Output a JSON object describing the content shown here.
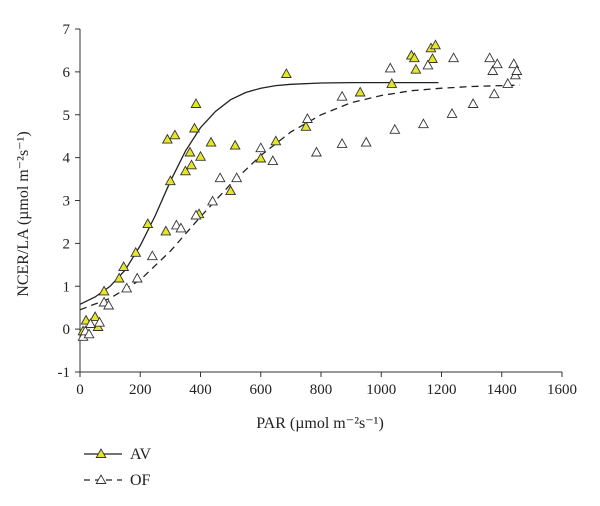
{
  "chart_data": {
    "type": "scatter",
    "xlabel": "PAR (µmol m⁻²s⁻¹)",
    "ylabel": "NCER/LA (µmol m⁻²s⁻¹)",
    "xlim": [
      0,
      1600
    ],
    "ylim": [
      -1,
      7
    ],
    "xticks": [
      0,
      200,
      400,
      600,
      800,
      1000,
      1200,
      1400,
      1600
    ],
    "yticks": [
      -1,
      0,
      1,
      2,
      3,
      4,
      5,
      6,
      7
    ],
    "grid": false,
    "legend_placement": "bottom-left",
    "series": [
      {
        "name": "AV",
        "marker": "triangle",
        "marker_fill": "#e6e629",
        "curve_style": "solid",
        "points": [
          [
            10,
            -0.05
          ],
          [
            20,
            0.2
          ],
          [
            50,
            0.28
          ],
          [
            60,
            0.05
          ],
          [
            80,
            0.88
          ],
          [
            130,
            1.18
          ],
          [
            145,
            1.45
          ],
          [
            185,
            1.78
          ],
          [
            225,
            2.45
          ],
          [
            285,
            2.28
          ],
          [
            290,
            4.42
          ],
          [
            300,
            3.45
          ],
          [
            315,
            4.52
          ],
          [
            350,
            3.68
          ],
          [
            365,
            4.12
          ],
          [
            370,
            3.82
          ],
          [
            380,
            4.68
          ],
          [
            385,
            5.25
          ],
          [
            395,
            2.68
          ],
          [
            400,
            4.02
          ],
          [
            435,
            4.35
          ],
          [
            500,
            3.22
          ],
          [
            515,
            4.28
          ],
          [
            600,
            3.98
          ],
          [
            650,
            4.38
          ],
          [
            685,
            5.95
          ],
          [
            750,
            4.72
          ],
          [
            930,
            5.52
          ],
          [
            1035,
            5.72
          ],
          [
            1100,
            6.38
          ],
          [
            1110,
            6.32
          ],
          [
            1115,
            6.05
          ],
          [
            1165,
            6.55
          ],
          [
            1170,
            6.3
          ],
          [
            1180,
            6.62
          ]
        ],
        "curve": [
          [
            0,
            0.58
          ],
          [
            50,
            0.75
          ],
          [
            100,
            1.0
          ],
          [
            150,
            1.38
          ],
          [
            200,
            1.95
          ],
          [
            250,
            2.65
          ],
          [
            300,
            3.45
          ],
          [
            350,
            4.15
          ],
          [
            400,
            4.7
          ],
          [
            450,
            5.08
          ],
          [
            500,
            5.35
          ],
          [
            550,
            5.52
          ],
          [
            600,
            5.62
          ],
          [
            650,
            5.68
          ],
          [
            700,
            5.71
          ],
          [
            800,
            5.74
          ],
          [
            900,
            5.75
          ],
          [
            1000,
            5.75
          ],
          [
            1100,
            5.75
          ],
          [
            1190,
            5.75
          ]
        ]
      },
      {
        "name": "OF",
        "marker": "triangle",
        "marker_fill": "#ffffff",
        "curve_style": "dashed",
        "points": [
          [
            10,
            -0.18
          ],
          [
            18,
            -0.05
          ],
          [
            30,
            -0.12
          ],
          [
            35,
            0.12
          ],
          [
            65,
            0.15
          ],
          [
            80,
            0.62
          ],
          [
            95,
            0.55
          ],
          [
            155,
            0.95
          ],
          [
            190,
            1.18
          ],
          [
            240,
            1.7
          ],
          [
            320,
            2.42
          ],
          [
            335,
            2.35
          ],
          [
            385,
            2.65
          ],
          [
            440,
            2.98
          ],
          [
            465,
            3.52
          ],
          [
            520,
            3.52
          ],
          [
            600,
            4.22
          ],
          [
            640,
            3.92
          ],
          [
            755,
            4.9
          ],
          [
            785,
            4.12
          ],
          [
            870,
            4.32
          ],
          [
            870,
            5.42
          ],
          [
            950,
            4.35
          ],
          [
            1030,
            6.08
          ],
          [
            1045,
            4.65
          ],
          [
            1140,
            4.78
          ],
          [
            1155,
            6.15
          ],
          [
            1235,
            5.02
          ],
          [
            1240,
            6.32
          ],
          [
            1305,
            5.25
          ],
          [
            1360,
            6.32
          ],
          [
            1370,
            6.02
          ],
          [
            1375,
            5.48
          ],
          [
            1385,
            6.18
          ],
          [
            1420,
            5.72
          ],
          [
            1440,
            6.18
          ],
          [
            1445,
            5.92
          ],
          [
            1450,
            6.02
          ]
        ],
        "curve": [
          [
            0,
            0.45
          ],
          [
            100,
            0.72
          ],
          [
            200,
            1.15
          ],
          [
            300,
            1.82
          ],
          [
            400,
            2.62
          ],
          [
            500,
            3.38
          ],
          [
            600,
            4.05
          ],
          [
            700,
            4.6
          ],
          [
            800,
            5.0
          ],
          [
            900,
            5.28
          ],
          [
            1000,
            5.45
          ],
          [
            1100,
            5.56
          ],
          [
            1200,
            5.62
          ],
          [
            1300,
            5.66
          ],
          [
            1400,
            5.68
          ],
          [
            1460,
            5.69
          ]
        ]
      }
    ]
  }
}
